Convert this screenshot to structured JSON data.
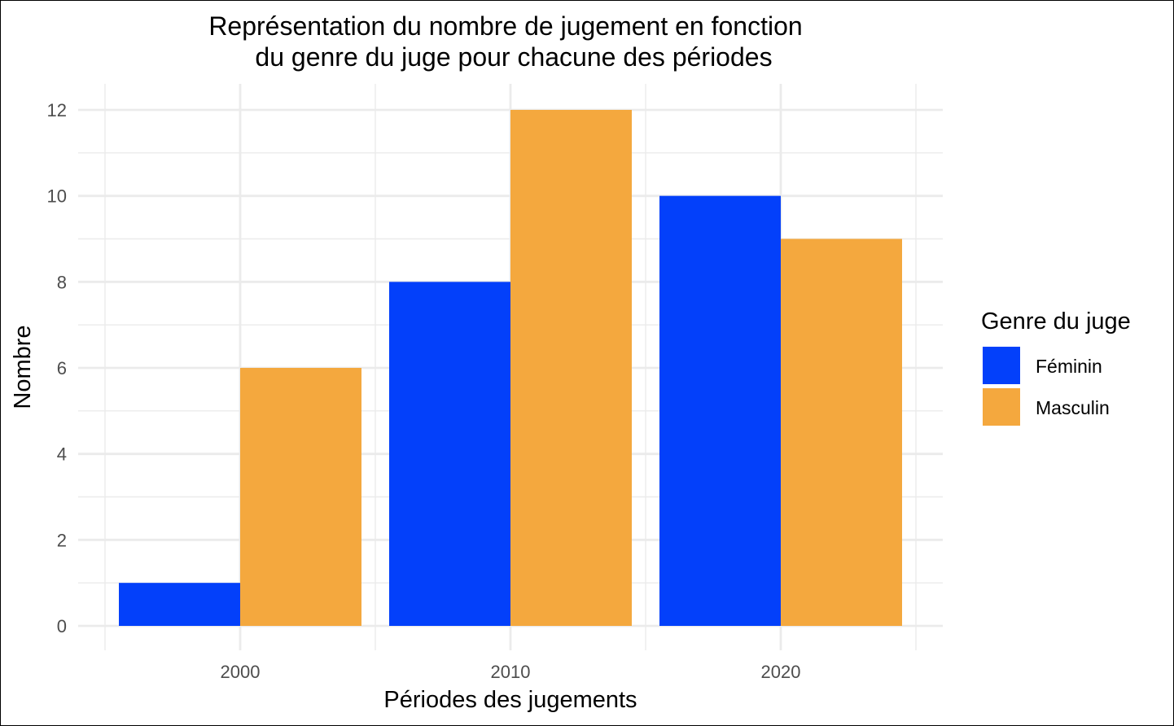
{
  "chart_data": {
    "type": "bar",
    "title_lines": [
      "Représentation du nombre de jugement en fonction",
      "du genre du juge pour chacune des périodes"
    ],
    "xlabel": "Périodes des jugements",
    "ylabel": "Nombre",
    "categories": [
      "2000",
      "2010",
      "2020"
    ],
    "series": [
      {
        "name": "Féminin",
        "values": [
          1,
          8,
          10
        ],
        "color": "#0340FA"
      },
      {
        "name": "Masculin",
        "values": [
          6,
          12,
          9
        ],
        "color": "#F4A83E"
      }
    ],
    "ylim": [
      -0.5,
      12.6
    ],
    "yticks": [
      0,
      2,
      4,
      6,
      8,
      10,
      12
    ],
    "legend": {
      "title": "Genre du juge",
      "position": "right"
    },
    "grid": true,
    "grid_color": "#EBEBEB"
  }
}
